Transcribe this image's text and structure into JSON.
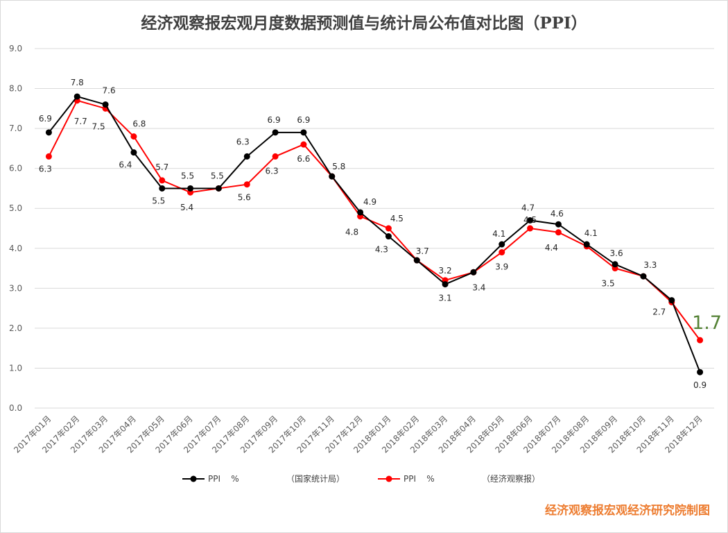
{
  "chart_data": {
    "type": "line",
    "title": "经济观察报宏观月度数据预测值与统计局公布值对比图（PPI）",
    "credit": "经济观察报宏观经济研究院制图",
    "categories": [
      "2017年01月",
      "2017年02月",
      "2017年03月",
      "2017年04月",
      "2017年05月",
      "2017年06月",
      "2017年07月",
      "2017年08月",
      "2017年09月",
      "2017年10月",
      "2017年11月",
      "2017年12月",
      "2018年01月",
      "2018年02月",
      "2018年03月",
      "2018年04月",
      "2018年05月",
      "2018年06月",
      "2018年07月",
      "2018年08月",
      "2018年09月",
      "2018年10月",
      "2018年11月",
      "2018年12月"
    ],
    "ylim": [
      0,
      9
    ],
    "yticks": [
      "0.0",
      "1.0",
      "2.0",
      "3.0",
      "4.0",
      "5.0",
      "6.0",
      "7.0",
      "8.0",
      "9.0"
    ],
    "grid": true,
    "legend_position": "bottom",
    "series": [
      {
        "name": "PPI    %",
        "source": "（国家统计局）",
        "color": "#000000",
        "values": [
          6.9,
          7.8,
          7.6,
          6.4,
          5.5,
          5.5,
          5.5,
          6.3,
          6.9,
          6.9,
          5.8,
          4.9,
          4.3,
          3.7,
          3.1,
          3.4,
          4.1,
          4.7,
          4.6,
          4.1,
          3.6,
          3.3,
          2.7,
          0.9
        ],
        "labels": [
          "6.9",
          "7.8",
          "7.6",
          "6.4",
          "5.5",
          "5.5",
          "5.5",
          "6.3",
          "6.9",
          "6.9",
          "5.8",
          "4.9",
          "4.3",
          "3.7",
          "3.1",
          "3.4",
          "4.1",
          "4.7",
          "4.6",
          "4.1",
          "3.6",
          "3.3",
          "2.7",
          "0.9"
        ]
      },
      {
        "name": "PPI    %",
        "source": "（经济观察报）",
        "color": "#FF0000",
        "values": [
          6.3,
          7.7,
          7.5,
          6.8,
          5.7,
          5.4,
          5.5,
          5.6,
          6.3,
          6.6,
          5.8,
          4.8,
          4.5,
          3.7,
          3.2,
          3.4,
          3.9,
          4.5,
          4.4,
          4.05,
          3.5,
          3.3,
          2.65,
          1.7
        ],
        "labels": [
          "6.3",
          "7.7",
          "7.5",
          "6.8",
          "5.7",
          "5.4",
          "",
          "5.6",
          "6.3",
          "6.6",
          "",
          "4.8",
          "4.5",
          "",
          "3.2",
          "",
          "3.9",
          "4.5",
          "4.4",
          "",
          "3.5",
          "",
          "",
          "1.7"
        ]
      }
    ],
    "highlight_label_color": "#548235"
  }
}
